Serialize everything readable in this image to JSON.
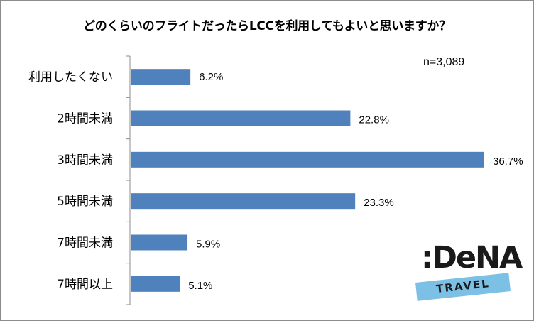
{
  "chart_data": {
    "type": "bar",
    "orientation": "horizontal",
    "title": "どのくらいのフライトだったらLCCを利用してもよいと思いますか？",
    "note": "n=3,089",
    "categories": [
      "利用したくない",
      "2時間未満",
      "3時間未満",
      "5時間未満",
      "7時間未満",
      "7時間以上"
    ],
    "values": [
      6.2,
      22.8,
      36.7,
      23.3,
      5.9,
      5.1
    ],
    "value_labels": [
      "6.2%",
      "22.8%",
      "36.7%",
      "23.3%",
      "5.9%",
      "5.1%"
    ],
    "unit": "%",
    "bar_color": "#4f81bd",
    "grid": false,
    "legend": "none"
  },
  "logo": {
    "brand": ":DeNA",
    "sub": "TRAVEL",
    "band_color": "#7cc0e6"
  }
}
